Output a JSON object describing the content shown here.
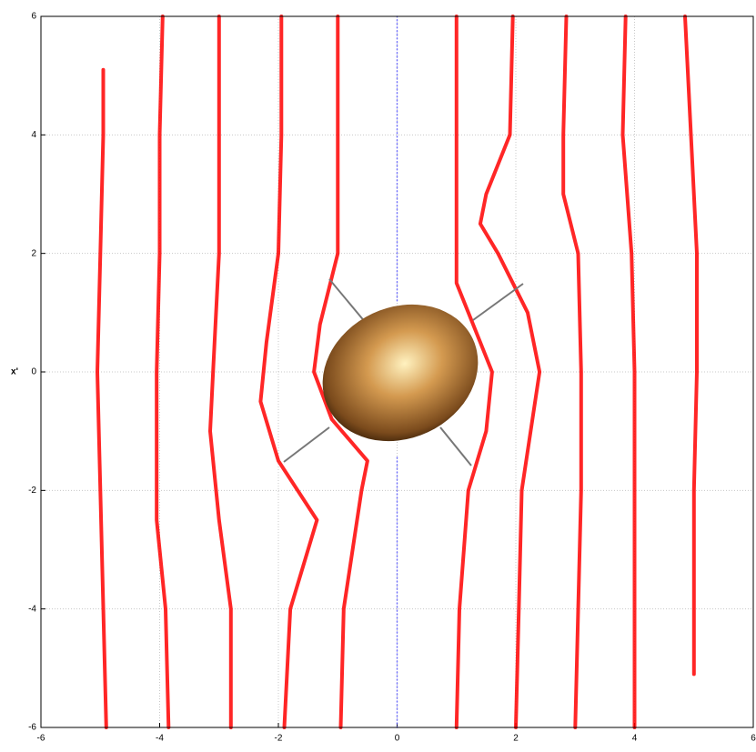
{
  "chart_data": {
    "type": "line",
    "y_label": "x'",
    "xlim": [
      -6,
      6
    ],
    "ylim": [
      -6,
      6
    ],
    "xticks": [
      -6,
      -4,
      -2,
      0,
      2,
      4,
      6
    ],
    "yticks": [
      -6,
      -4,
      -2,
      0,
      2,
      4,
      6
    ],
    "grid": true,
    "series": [
      {
        "color": "#ff0000",
        "x": [
          -4.9,
          -5.0,
          -5.05,
          -5.0,
          -4.95,
          -4.95
        ],
        "values": [
          -6,
          -2,
          0,
          2,
          4,
          5.1
        ]
      },
      {
        "color": "#ff0000",
        "x": [
          -3.85,
          -3.9,
          -4.05,
          -4.05,
          -4.0,
          -4.0,
          -3.95
        ],
        "values": [
          -6,
          -4,
          -2.5,
          0,
          2,
          4,
          6
        ]
      },
      {
        "color": "#ff0000",
        "x": [
          -2.8,
          -2.8,
          -3.0,
          -3.15,
          -3.1,
          -3.0,
          -3.0,
          -3.0
        ],
        "values": [
          -6,
          -4,
          -2.5,
          -1,
          0,
          2,
          4,
          6
        ]
      },
      {
        "color": "#ff0000",
        "x": [
          -1.9,
          -1.8,
          -1.35,
          -2.0,
          -2.3,
          -2.2,
          -2.0,
          -1.95,
          -1.95
        ],
        "values": [
          -6,
          -4,
          -2.5,
          -1.5,
          -0.5,
          0.5,
          2,
          4,
          6
        ]
      },
      {
        "color": "#ff0000",
        "x": [
          -0.95,
          -0.9,
          -0.6,
          -0.5,
          -1.1,
          -1.4,
          -1.3,
          -1.0,
          -1.0,
          -1.0
        ],
        "values": [
          -6,
          -4,
          -2,
          -1.5,
          -0.8,
          0,
          0.8,
          2,
          4,
          6
        ]
      },
      {
        "color": "#6060ff",
        "x": [
          0,
          0,
          null,
          0,
          0
        ],
        "values": [
          -6,
          -1.4,
          null,
          1.2,
          6
        ]
      },
      {
        "color": "#ff0000",
        "x": [
          1.0,
          1.05,
          1.2,
          1.5,
          1.6,
          1.4,
          1.0,
          1.0,
          1.0
        ],
        "values": [
          -6,
          -4,
          -2,
          -1,
          0,
          0.5,
          1.5,
          4,
          6
        ]
      },
      {
        "color": "#ff0000",
        "x": [
          2.0,
          2.05,
          2.1,
          2.4,
          2.2,
          1.7,
          1.4,
          1.5,
          1.9,
          1.95
        ],
        "values": [
          -6,
          -4,
          -2,
          0,
          1,
          2,
          2.5,
          3,
          4,
          6
        ]
      },
      {
        "color": "#ff0000",
        "x": [
          3.0,
          3.1,
          3.1,
          3.05,
          2.8,
          2.8,
          2.85
        ],
        "values": [
          -6,
          -2,
          0,
          2,
          3,
          4,
          6
        ]
      },
      {
        "color": "#ff0000",
        "x": [
          4.0,
          4.0,
          4.0,
          3.95,
          3.8,
          3.85
        ],
        "values": [
          -6,
          -2,
          0,
          2,
          4,
          6
        ]
      },
      {
        "color": "#ff0000",
        "x": [
          5.0,
          5.0,
          5.05,
          5.05,
          4.95,
          4.85
        ],
        "values": [
          -5.1,
          -2,
          0,
          2,
          4,
          6
        ]
      }
    ]
  }
}
